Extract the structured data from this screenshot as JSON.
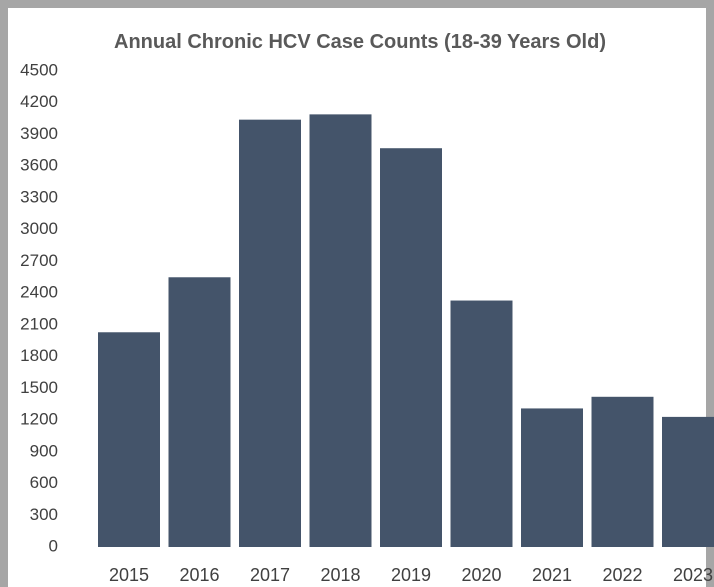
{
  "chart_data": {
    "type": "bar",
    "title": "Annual Chronic HCV Case Counts (18-39 Years Old)",
    "categories": [
      "2015",
      "2016",
      "2017",
      "2018",
      "2019",
      "2020",
      "2021",
      "2022",
      "2023"
    ],
    "values": [
      2030,
      2550,
      4040,
      4090,
      3770,
      2330,
      1310,
      1420,
      1230
    ],
    "color": "#44546a",
    "ylim": [
      0,
      4500
    ],
    "yticks": [
      0,
      300,
      600,
      900,
      1200,
      1500,
      1800,
      2100,
      2400,
      2700,
      3000,
      3300,
      3600,
      3900,
      4200,
      4500
    ],
    "grid": false
  }
}
